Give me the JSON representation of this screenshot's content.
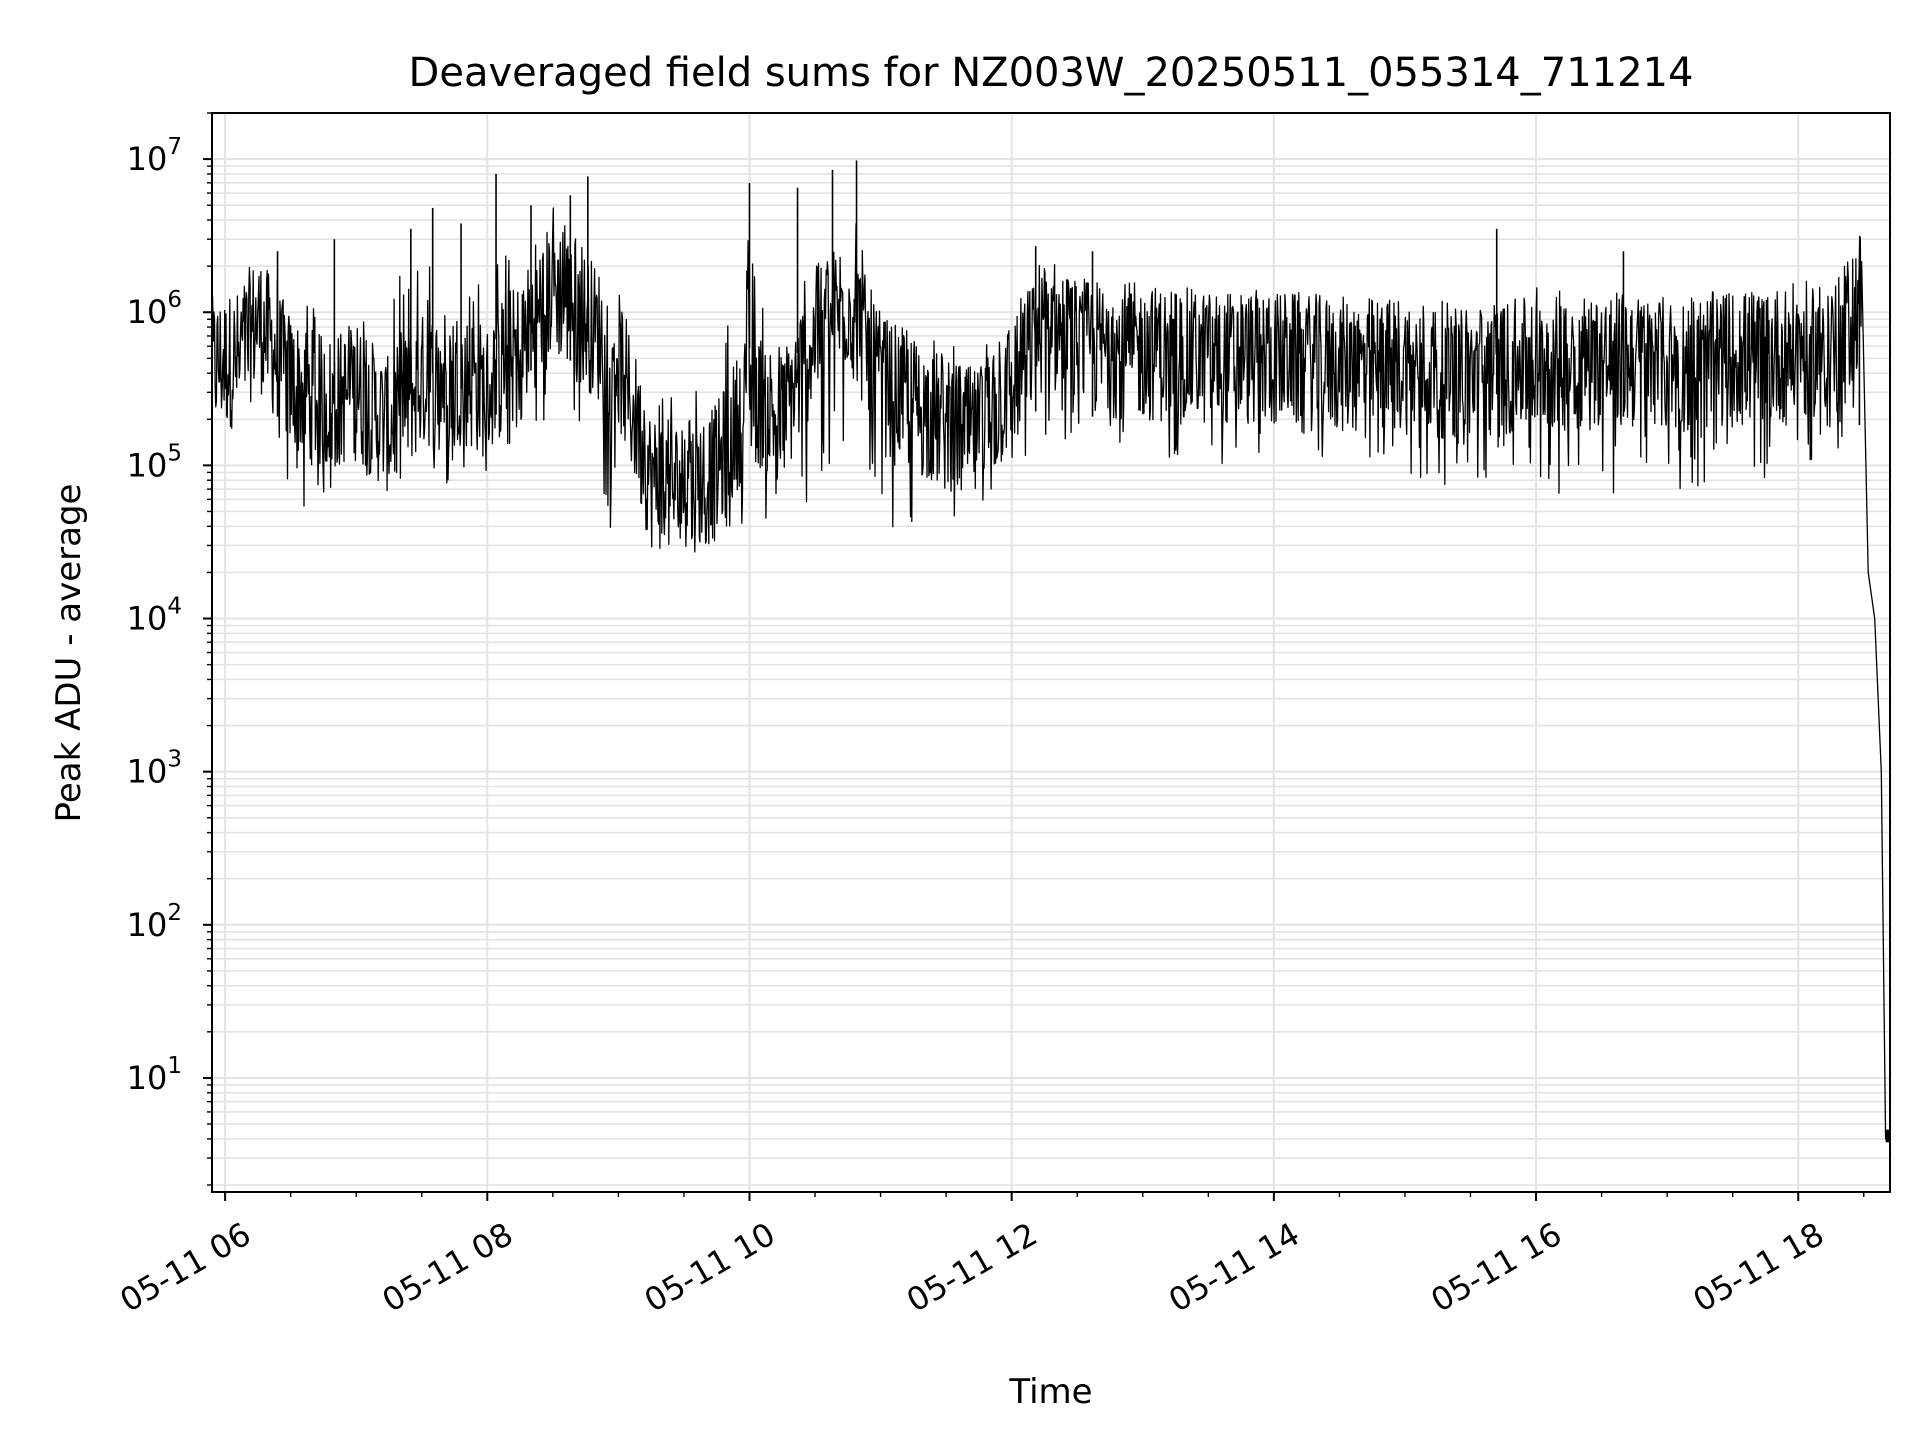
{
  "chart_data": {
    "type": "line",
    "title": "Deaveraged field sums for NZ003W_20250511_055314_711214",
    "xlabel": "Time",
    "ylabel": "Peak ADU - average",
    "yscale": "log",
    "xlim": [
      "2025-05-11 05:54",
      "2025-05-11 18:42"
    ],
    "ylim": [
      1.8,
      20000000
    ],
    "grid": true,
    "x_tick_labels": [
      "05-11 06",
      "05-11 08",
      "05-11 10",
      "05-11 12",
      "05-11 14",
      "05-11 16",
      "05-11 18"
    ],
    "x_ticks": [
      "2025-05-11 06:00",
      "2025-05-11 08:00",
      "2025-05-11 10:00",
      "2025-05-11 12:00",
      "2025-05-11 14:00",
      "2025-05-11 16:00",
      "2025-05-11 18:00"
    ],
    "y_tick_values": [
      10,
      100,
      1000,
      10000,
      100000,
      1000000,
      10000000
    ],
    "y_tick_labels": [
      {
        "base": "10",
        "exp": "1"
      },
      {
        "base": "10",
        "exp": "2"
      },
      {
        "base": "10",
        "exp": "3"
      },
      {
        "base": "10",
        "exp": "4"
      },
      {
        "base": "10",
        "exp": "5"
      },
      {
        "base": "10",
        "exp": "6"
      },
      {
        "base": "10",
        "exp": "7"
      }
    ],
    "series": [
      {
        "color": "#000000",
        "x": [
          "2025-05-11 05:54",
          "2025-05-11 06:06",
          "2025-05-11 06:15",
          "2025-05-11 06:30",
          "2025-05-11 06:45",
          "2025-05-11 07:00",
          "2025-05-11 07:15",
          "2025-05-11 07:30",
          "2025-05-11 07:45",
          "2025-05-11 08:00",
          "2025-05-11 08:15",
          "2025-05-11 08:30",
          "2025-05-11 08:45",
          "2025-05-11 09:00",
          "2025-05-11 09:15",
          "2025-05-11 09:30",
          "2025-05-11 09:45",
          "2025-05-11 10:00",
          "2025-05-11 10:15",
          "2025-05-11 10:30",
          "2025-05-11 10:45",
          "2025-05-11 11:00",
          "2025-05-11 11:15",
          "2025-05-11 11:30",
          "2025-05-11 11:45",
          "2025-05-11 12:00",
          "2025-05-11 12:15",
          "2025-05-11 12:30",
          "2025-05-11 13:00",
          "2025-05-11 13:30",
          "2025-05-11 14:00",
          "2025-05-11 14:30",
          "2025-05-11 15:00",
          "2025-05-11 15:30",
          "2025-05-11 16:00",
          "2025-05-11 16:30",
          "2025-05-11 17:00",
          "2025-05-11 17:30",
          "2025-05-11 18:00",
          "2025-05-11 18:20",
          "2025-05-11 18:29",
          "2025-05-11 18:32",
          "2025-05-11 18:35",
          "2025-05-11 18:38",
          "2025-05-11 18:40",
          "2025-05-11 18:42"
        ],
        "y": [
          450000,
          500000,
          900000,
          350000,
          250000,
          300000,
          180000,
          350000,
          400000,
          300000,
          600000,
          1500000,
          900000,
          500000,
          80000,
          70000,
          90000,
          300000,
          200000,
          700000,
          1200000,
          350000,
          250000,
          180000,
          150000,
          350000,
          900000,
          600000,
          550000,
          500000,
          500000,
          450000,
          450000,
          400000,
          450000,
          500000,
          450000,
          500000,
          550000,
          650000,
          1400000,
          20000,
          10000,
          1000,
          4,
          4
        ],
        "upper": [
          550000,
          700000,
          1300000,
          2000000,
          1000000,
          1200000,
          1500000,
          2500000,
          3000000,
          1500000,
          4500000,
          5000000,
          3000000,
          400000,
          350000,
          300000,
          400000,
          4000000,
          500000,
          3500000,
          7000000,
          1000000,
          800000,
          600000,
          600000,
          1000000,
          1800000,
          1500000,
          1500000,
          1400000,
          1300000,
          1300000,
          1200000,
          1200000,
          1500000,
          1200000,
          1300000,
          1300000,
          1400000,
          1500000,
          2000000,
          22000,
          12000,
          1500,
          4.3,
          4.3
        ],
        "lower": [
          380000,
          350000,
          300000,
          50000,
          60000,
          50000,
          60000,
          50000,
          80000,
          80000,
          150000,
          200000,
          120000,
          25000,
          25000,
          22000,
          30000,
          40000,
          50000,
          50000,
          100000,
          40000,
          35000,
          35000,
          50000,
          100000,
          120000,
          120000,
          110000,
          100000,
          90000,
          90000,
          80000,
          60000,
          60000,
          60000,
          60000,
          70000,
          100000,
          130000,
          350000,
          13000,
          8000,
          700,
          3.8,
          3.8
        ],
        "spikes": [
          {
            "x": "2025-05-11 06:24",
            "y": 2500000
          },
          {
            "x": "2025-05-11 06:50",
            "y": 3000000
          },
          {
            "x": "2025-05-11 07:25",
            "y": 3500000
          },
          {
            "x": "2025-05-11 07:35",
            "y": 4800000
          },
          {
            "x": "2025-05-11 07:48",
            "y": 3800000
          },
          {
            "x": "2025-05-11 08:04",
            "y": 8000000
          },
          {
            "x": "2025-05-11 08:20",
            "y": 5000000
          },
          {
            "x": "2025-05-11 08:38",
            "y": 5800000
          },
          {
            "x": "2025-05-11 08:46",
            "y": 7700000
          },
          {
            "x": "2025-05-11 10:00",
            "y": 7000000
          },
          {
            "x": "2025-05-11 10:22",
            "y": 6500000
          },
          {
            "x": "2025-05-11 10:38",
            "y": 8500000
          },
          {
            "x": "2025-05-11 10:49",
            "y": 9800000
          },
          {
            "x": "2025-05-11 12:11",
            "y": 2700000
          },
          {
            "x": "2025-05-11 12:37",
            "y": 2500000
          },
          {
            "x": "2025-05-11 15:42",
            "y": 3500000
          },
          {
            "x": "2025-05-11 16:40",
            "y": 2500000
          },
          {
            "x": "2025-05-11 18:28",
            "y": 2200000
          }
        ]
      }
    ]
  }
}
